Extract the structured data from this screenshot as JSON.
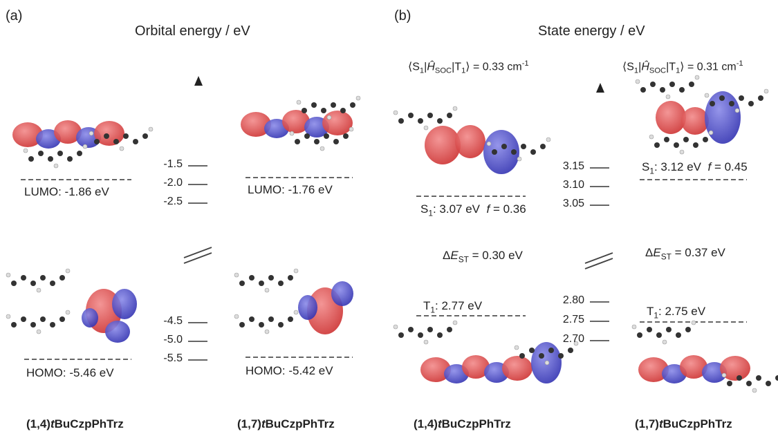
{
  "panel_a": {
    "label": "(a)",
    "title": "Orbital energy / eV",
    "axis_ticks_top": [
      "-1.5",
      "-2.0",
      "-2.5"
    ],
    "axis_ticks_bottom": [
      "-4.5",
      "-5.0",
      "-5.5"
    ],
    "left": {
      "lumo_label": "LUMO: -1.86 eV",
      "homo_label": "HOMO: -5.46 eV",
      "name_prefix": "(1,4)",
      "name_t": "t",
      "name_suffix": "BuCzpPhTrz"
    },
    "right": {
      "lumo_label": "LUMO: -1.76 eV",
      "homo_label": "HOMO: -5.42 eV",
      "name_prefix": "(1,7)",
      "name_t": "t",
      "name_suffix": "BuCzpPhTrz"
    }
  },
  "panel_b": {
    "label": "(b)",
    "title": "State energy / eV",
    "axis_ticks_top": [
      "3.15",
      "3.10",
      "3.05"
    ],
    "axis_ticks_bottom": [
      "2.80",
      "2.75",
      "2.70"
    ],
    "left": {
      "soc_prefix": "⟨S",
      "soc_value": " = 0.33 cm",
      "s1_energy": ": 3.07 eV",
      "f_value": " = 0.36",
      "dest_value": " = 0.30 eV",
      "t1_energy": ": 2.77 eV",
      "name_prefix": "(1,4)",
      "name_t": "t",
      "name_suffix": "BuCzpPhTrz"
    },
    "right": {
      "soc_value": " = 0.31 cm",
      "s1_energy": ": 3.12 eV",
      "f_value": " = 0.45",
      "dest_value": " = 0.37 eV",
      "t1_energy": ": 2.75 eV",
      "name_prefix": "(1,7)",
      "name_t": "t",
      "name_suffix": "BuCzpPhTrz"
    }
  },
  "colors": {
    "red_lobe": "#e04848",
    "blue_lobe": "#4848c8",
    "axis": "#333333",
    "dash": "#666666"
  }
}
